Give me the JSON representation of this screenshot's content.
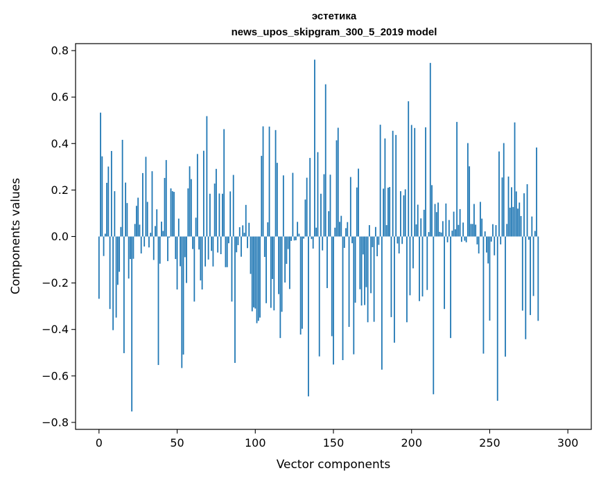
{
  "chart_data": {
    "type": "bar",
    "title": "эстетика",
    "subtitle": "news_upos_skipgram_300_5_2019 model",
    "xlabel": "Vector components",
    "ylabel": "Components values",
    "xlim": [
      -15,
      315
    ],
    "ylim": [
      -0.83,
      0.83
    ],
    "xticks": [
      0,
      50,
      100,
      150,
      200,
      250,
      300
    ],
    "yticks": [
      -0.8,
      -0.6,
      -0.4,
      -0.2,
      0.0,
      0.2,
      0.4,
      0.6,
      0.8
    ],
    "ytick_labels": [
      "−0.8",
      "−0.6",
      "−0.4",
      "−0.2",
      "0.0",
      "0.2",
      "0.4",
      "0.6",
      "0.8"
    ],
    "grid": false,
    "bar_color": "#1f77b4",
    "values": [
      -0.268,
      0.533,
      0.345,
      -0.084,
      0.012,
      0.231,
      0.301,
      -0.312,
      0.368,
      -0.403,
      0.195,
      -0.349,
      -0.208,
      -0.152,
      0.041,
      0.416,
      -0.502,
      0.232,
      0.144,
      -0.181,
      -0.097,
      -0.753,
      -0.096,
      0.054,
      0.132,
      0.167,
      0.051,
      -0.073,
      0.273,
      -0.043,
      0.343,
      0.149,
      -0.047,
      0.016,
      0.281,
      -0.101,
      0.045,
      0.117,
      -0.553,
      -0.117,
      0.064,
      0.024,
      0.252,
      0.329,
      -0.106,
      -0.005,
      0.207,
      0.195,
      0.192,
      -0.097,
      -0.228,
      0.077,
      -0.128,
      -0.566,
      -0.508,
      -0.089,
      -0.2,
      0.207,
      0.302,
      0.247,
      -0.054,
      -0.28,
      0.081,
      0.355,
      -0.056,
      -0.189,
      -0.228,
      0.369,
      -0.129,
      0.518,
      -0.099,
      0.184,
      -0.062,
      -0.129,
      0.228,
      0.291,
      -0.069,
      0.185,
      -0.076,
      0.184,
      0.462,
      -0.132,
      -0.132,
      -0.029,
      0.194,
      -0.28,
      0.265,
      -0.544,
      -0.068,
      -0.037,
      0.04,
      -0.087,
      0.048,
      0.016,
      0.136,
      -0.05,
      0.059,
      -0.161,
      -0.322,
      -0.305,
      -0.31,
      -0.373,
      -0.363,
      -0.349,
      0.347,
      0.474,
      -0.088,
      -0.287,
      0.061,
      0.473,
      -0.307,
      -0.183,
      -0.318,
      0.458,
      0.317,
      -0.248,
      -0.437,
      -0.324,
      0.263,
      -0.198,
      -0.118,
      -0.054,
      -0.226,
      -0.019,
      0.274,
      -0.017,
      -0.016,
      0.063,
      0.012,
      -0.422,
      -0.397,
      -0.009,
      0.159,
      0.253,
      -0.688,
      0.338,
      -0.011,
      -0.052,
      0.761,
      0.038,
      0.363,
      -0.516,
      0.184,
      -0.06,
      0.268,
      0.655,
      -0.222,
      0.109,
      0.266,
      -0.429,
      -0.551,
      0.038,
      0.414,
      0.468,
      0.063,
      0.089,
      -0.532,
      -0.049,
      0.036,
      0.062,
      -0.389,
      0.256,
      -0.029,
      -0.507,
      -0.285,
      0.211,
      0.292,
      -0.227,
      -0.297,
      -0.077,
      -0.295,
      -0.218,
      -0.369,
      0.049,
      -0.244,
      -0.046,
      -0.367,
      0.041,
      -0.085,
      -0.036,
      0.481,
      -0.573,
      0.206,
      0.422,
      0.049,
      0.21,
      0.213,
      -0.347,
      0.455,
      -0.457,
      0.437,
      -0.03,
      -0.073,
      0.195,
      -0.032,
      0.177,
      0.203,
      -0.369,
      0.582,
      -0.253,
      0.48,
      -0.137,
      0.467,
      0.052,
      0.137,
      -0.278,
      0.078,
      -0.258,
      0.115,
      0.47,
      -0.23,
      0.019,
      0.747,
      0.221,
      -0.679,
      0.14,
      0.105,
      0.146,
      0.02,
      0.017,
      0.066,
      -0.312,
      0.142,
      -0.025,
      0.071,
      -0.437,
      0.025,
      0.107,
      0.031,
      0.493,
      0.05,
      0.118,
      -0.023,
      0.06,
      -0.018,
      -0.025,
      0.402,
      0.302,
      0.054,
      0.054,
      0.14,
      0.051,
      -0.034,
      -0.073,
      0.149,
      0.077,
      -0.504,
      0.022,
      -0.069,
      -0.116,
      -0.362,
      -0.022,
      0.053,
      -0.081,
      0.049,
      -0.707,
      0.366,
      -0.034,
      0.254,
      0.402,
      -0.517,
      0.054,
      0.258,
      0.124,
      0.212,
      0.127,
      0.491,
      0.194,
      0.12,
      0.146,
      0.088,
      -0.319,
      0.186,
      -0.442,
      0.225,
      -0.014,
      -0.338,
      0.086,
      -0.256,
      0.024,
      0.383,
      -0.363
    ]
  }
}
